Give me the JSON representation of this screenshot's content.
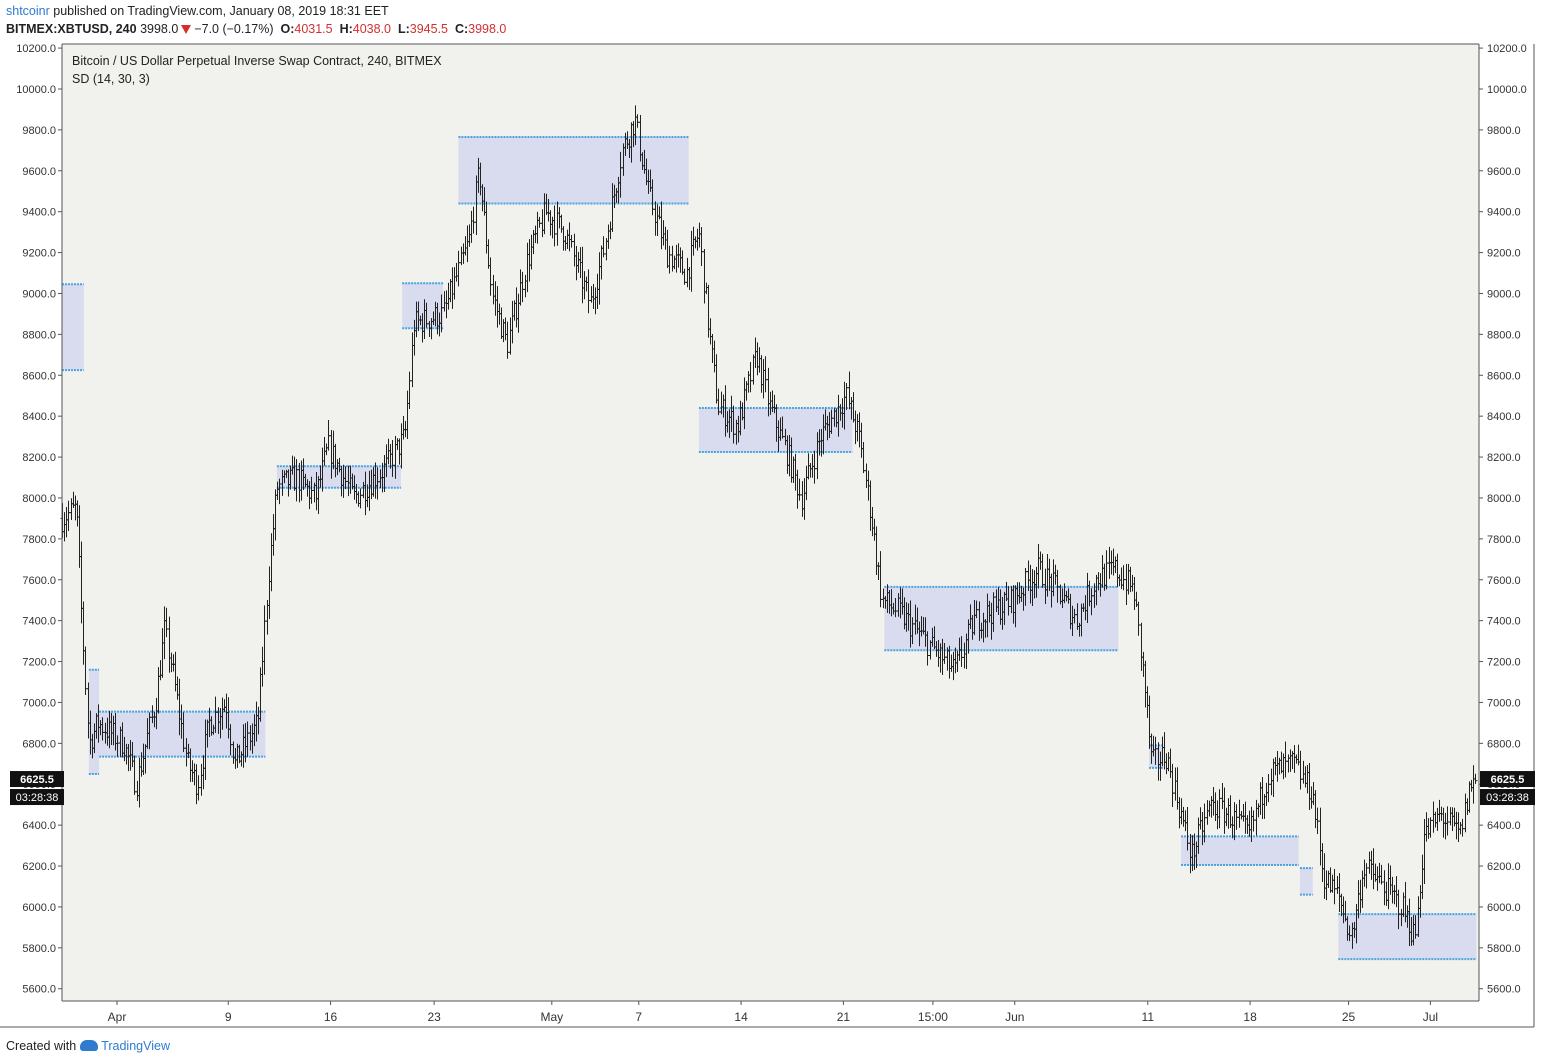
{
  "header": {
    "user": "shtcoinr",
    "published_text": " published on TradingView.com, January 08, 2019 18:31 EET",
    "symbol": "BITMEX:XBTUSD, 240",
    "last": "3998.0",
    "change": "−7.0 (−0.17%)",
    "o_label": "O:",
    "o_value": "4031.5",
    "h_label": "H:",
    "h_value": "4038.0",
    "l_label": "L:",
    "l_value": "3945.5",
    "c_label": "C:",
    "c_value": "3998.0"
  },
  "footer": {
    "created_with": "Created with",
    "brand": "TradingView"
  },
  "colors": {
    "background": "#f1f2ed",
    "candle": "#222222",
    "zone_fill": "#d9dbef",
    "zone_line": "#4aa3df",
    "down": "#d32f2f",
    "label_bg": "#111111",
    "label_text": "#ffffff",
    "brand": "#2e7bcf"
  },
  "chart_data": {
    "type": "ohlc",
    "title": "Bitcoin / US Dollar Perpetual Inverse Swap Contract, 240, BITMEX",
    "indicator": "SD (14, 30, 3)",
    "timeframe": "240",
    "ylim": [
      5540,
      10220
    ],
    "y_ticks": [
      5600,
      5800,
      6000,
      6200,
      6400,
      6600,
      6800,
      7000,
      7200,
      7400,
      7600,
      7800,
      8000,
      8200,
      8400,
      8600,
      8800,
      9000,
      9200,
      9400,
      9600,
      9800,
      10000,
      10200
    ],
    "y_tick_labels": [
      "5600.0",
      "5800.0",
      "6000.0",
      "6200.0",
      "6400.0",
      "6600.0",
      "6800.0",
      "7000.0",
      "7200.0",
      "7400.0",
      "7600.0",
      "7800.0",
      "8000.0",
      "8200.0",
      "8400.0",
      "8600.0",
      "8800.0",
      "9000.0",
      "9200.0",
      "9400.0",
      "9600.0",
      "9800.0",
      "10000.0",
      "10200.0"
    ],
    "x_range_days": [
      -4.3,
      106.5
    ],
    "x_ticks": [
      {
        "label": "Apr",
        "day": 0
      },
      {
        "label": "9",
        "day": 8.7
      },
      {
        "label": "16",
        "day": 16.7
      },
      {
        "label": "23",
        "day": 24.8
      },
      {
        "label": "May",
        "day": 34
      },
      {
        "label": "7",
        "day": 40.8
      },
      {
        "label": "14",
        "day": 48.8
      },
      {
        "label": "21",
        "day": 56.8
      },
      {
        "label": "15:00",
        "day": 63.8
      },
      {
        "label": "Jun",
        "day": 70.2
      },
      {
        "label": "11",
        "day": 80.6
      },
      {
        "label": "18",
        "day": 88.6
      },
      {
        "label": "25",
        "day": 96.3
      },
      {
        "label": "Jul",
        "day": 102.7
      }
    ],
    "current_price": {
      "value": 6625.5,
      "label": "6625.5",
      "countdown": "03:28:38"
    },
    "price_path": [
      {
        "day": -4.3,
        "price": 7900
      },
      {
        "day": -3.2,
        "price": 7950
      },
      {
        "day": -2.8,
        "price": 7450
      },
      {
        "day": -2.2,
        "price": 6800
      },
      {
        "day": -1.5,
        "price": 6900
      },
      {
        "day": 0.5,
        "price": 6800
      },
      {
        "day": 1.5,
        "price": 6600
      },
      {
        "day": 3.0,
        "price": 7000
      },
      {
        "day": 3.7,
        "price": 7350
      },
      {
        "day": 4.2,
        "price": 7200
      },
      {
        "day": 5.5,
        "price": 6700
      },
      {
        "day": 6.3,
        "price": 6600
      },
      {
        "day": 7.2,
        "price": 6900
      },
      {
        "day": 8.5,
        "price": 7000
      },
      {
        "day": 9.2,
        "price": 6700
      },
      {
        "day": 11.0,
        "price": 6900
      },
      {
        "day": 11.8,
        "price": 7600
      },
      {
        "day": 12.5,
        "price": 8050
      },
      {
        "day": 14.0,
        "price": 8100
      },
      {
        "day": 15.5,
        "price": 8000
      },
      {
        "day": 16.5,
        "price": 8250
      },
      {
        "day": 18.5,
        "price": 8000
      },
      {
        "day": 21.0,
        "price": 8150
      },
      {
        "day": 22.5,
        "price": 8300
      },
      {
        "day": 23.2,
        "price": 8850
      },
      {
        "day": 25.5,
        "price": 8900
      },
      {
        "day": 27.5,
        "price": 9250
      },
      {
        "day": 28.3,
        "price": 9600
      },
      {
        "day": 29.3,
        "price": 9000
      },
      {
        "day": 30.5,
        "price": 8750
      },
      {
        "day": 32.0,
        "price": 9150
      },
      {
        "day": 33.5,
        "price": 9400
      },
      {
        "day": 35.0,
        "price": 9300
      },
      {
        "day": 37.0,
        "price": 8950
      },
      {
        "day": 38.0,
        "price": 9200
      },
      {
        "day": 39.5,
        "price": 9700
      },
      {
        "day": 40.5,
        "price": 9850
      },
      {
        "day": 41.5,
        "price": 9500
      },
      {
        "day": 43.0,
        "price": 9200
      },
      {
        "day": 44.5,
        "price": 9100
      },
      {
        "day": 45.5,
        "price": 9300
      },
      {
        "day": 46.3,
        "price": 8800
      },
      {
        "day": 47.0,
        "price": 8450
      },
      {
        "day": 48.5,
        "price": 8350
      },
      {
        "day": 50.0,
        "price": 8700
      },
      {
        "day": 51.0,
        "price": 8450
      },
      {
        "day": 52.5,
        "price": 8200
      },
      {
        "day": 53.5,
        "price": 8000
      },
      {
        "day": 55.0,
        "price": 8300
      },
      {
        "day": 57.0,
        "price": 8500
      },
      {
        "day": 58.0,
        "price": 8300
      },
      {
        "day": 59.0,
        "price": 7900
      },
      {
        "day": 59.8,
        "price": 7500
      },
      {
        "day": 61.0,
        "price": 7450
      },
      {
        "day": 62.5,
        "price": 7350
      },
      {
        "day": 64.0,
        "price": 7250
      },
      {
        "day": 65.5,
        "price": 7150
      },
      {
        "day": 67.0,
        "price": 7400
      },
      {
        "day": 68.5,
        "price": 7450
      },
      {
        "day": 70.0,
        "price": 7500
      },
      {
        "day": 72.0,
        "price": 7650
      },
      {
        "day": 73.5,
        "price": 7550
      },
      {
        "day": 75.0,
        "price": 7400
      },
      {
        "day": 76.5,
        "price": 7600
      },
      {
        "day": 78.0,
        "price": 7650
      },
      {
        "day": 79.5,
        "price": 7550
      },
      {
        "day": 80.3,
        "price": 7100
      },
      {
        "day": 80.9,
        "price": 6700
      },
      {
        "day": 82.0,
        "price": 6750
      },
      {
        "day": 83.0,
        "price": 6500
      },
      {
        "day": 84.0,
        "price": 6250
      },
      {
        "day": 85.5,
        "price": 6500
      },
      {
        "day": 87.0,
        "price": 6450
      },
      {
        "day": 88.5,
        "price": 6350
      },
      {
        "day": 90.0,
        "price": 6650
      },
      {
        "day": 92.0,
        "price": 6700
      },
      {
        "day": 93.5,
        "price": 6550
      },
      {
        "day": 94.3,
        "price": 6150
      },
      {
        "day": 95.5,
        "price": 6050
      },
      {
        "day": 96.5,
        "price": 5850
      },
      {
        "day": 97.5,
        "price": 6200
      },
      {
        "day": 99.0,
        "price": 6100
      },
      {
        "day": 100.5,
        "price": 6000
      },
      {
        "day": 101.5,
        "price": 5850
      },
      {
        "day": 102.2,
        "price": 6350
      },
      {
        "day": 103.5,
        "price": 6450
      },
      {
        "day": 105.0,
        "price": 6350
      },
      {
        "day": 105.8,
        "price": 6600
      },
      {
        "day": 106.3,
        "price": 6625
      }
    ],
    "zones": [
      {
        "x0": -4.3,
        "x1": -2.6,
        "top": 9045,
        "bottom": 8625
      },
      {
        "x0": -2.2,
        "x1": -1.4,
        "top": 7160,
        "bottom": 6650
      },
      {
        "x0": -1.4,
        "x1": 11.6,
        "top": 6955,
        "bottom": 6735
      },
      {
        "x0": 12.5,
        "x1": 22.2,
        "top": 8155,
        "bottom": 8050
      },
      {
        "x0": 22.3,
        "x1": 25.5,
        "top": 9050,
        "bottom": 8830
      },
      {
        "x0": 26.7,
        "x1": 44.7,
        "top": 9765,
        "bottom": 9440
      },
      {
        "x0": 45.5,
        "x1": 57.5,
        "top": 8440,
        "bottom": 8225
      },
      {
        "x0": 60.0,
        "x1": 78.3,
        "top": 7565,
        "bottom": 7255
      },
      {
        "x0": 80.7,
        "x1": 81.8,
        "top": 6790,
        "bottom": 6680
      },
      {
        "x0": 83.2,
        "x1": 92.4,
        "top": 6345,
        "bottom": 6205
      },
      {
        "x0": 92.5,
        "x1": 93.5,
        "top": 6190,
        "bottom": 6060
      },
      {
        "x0": 95.5,
        "x1": 106.3,
        "top": 5965,
        "bottom": 5745
      }
    ]
  }
}
